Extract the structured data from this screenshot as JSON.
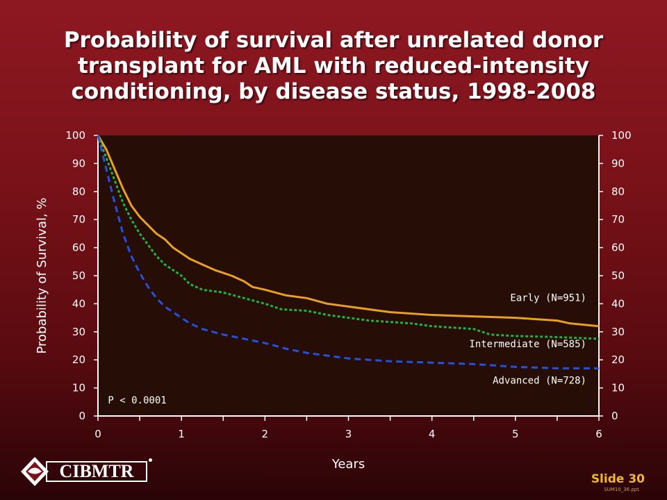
{
  "title_lines": [
    "Probability of survival after unrelated donor",
    "transplant for AML with reduced-intensity",
    "conditioning, by disease status, 1998-2008"
  ],
  "logo_text": "CIBMTR",
  "slide_label": "Slide 30",
  "file_ref": "SUM10_36.ppt",
  "colors": {
    "plot_bg": "#260e06",
    "axis": "#ffffff",
    "early": "#e8a21e",
    "intermediate": "#22b33a",
    "advanced": "#2352e0",
    "slide_num": "#f0b732"
  },
  "chart_data": {
    "type": "line",
    "title": "Probability of survival after unrelated donor transplant for AML with reduced-intensity conditioning, by disease status, 1998-2008",
    "xlabel": "Years",
    "ylabel": "Probability of Survival, %",
    "xlim": [
      0,
      6
    ],
    "ylim": [
      0,
      100
    ],
    "x_ticks": [
      0,
      1,
      2,
      3,
      4,
      5,
      6
    ],
    "y_ticks": [
      0,
      10,
      20,
      30,
      40,
      50,
      60,
      70,
      80,
      90,
      100
    ],
    "right_axis_ticks": [
      0,
      10,
      20,
      30,
      40,
      50,
      60,
      70,
      80,
      90,
      100
    ],
    "annotation": "P < 0.0001",
    "series": [
      {
        "name": "Early (N=951)",
        "color": "#e8a21e",
        "style": "solid",
        "x": [
          0,
          0.1,
          0.2,
          0.3,
          0.4,
          0.5,
          0.6,
          0.7,
          0.8,
          0.9,
          1.0,
          1.1,
          1.25,
          1.4,
          1.5,
          1.6,
          1.75,
          1.85,
          2.0,
          2.25,
          2.5,
          2.75,
          3.0,
          3.25,
          3.5,
          4.0,
          4.5,
          5.0,
          5.5,
          5.65,
          6.0
        ],
        "y": [
          100,
          95,
          88,
          81,
          75,
          71,
          68,
          65,
          63,
          60,
          58,
          56,
          54,
          52,
          51,
          50,
          48,
          46,
          45,
          43,
          42,
          40,
          39,
          38,
          37,
          36,
          35.5,
          35,
          34,
          33,
          32
        ]
      },
      {
        "name": "Intermediate (N=585)",
        "color": "#22b33a",
        "style": "dotted",
        "x": [
          0,
          0.1,
          0.2,
          0.3,
          0.4,
          0.5,
          0.6,
          0.7,
          0.8,
          0.9,
          1.0,
          1.1,
          1.25,
          1.5,
          1.75,
          2.0,
          2.2,
          2.5,
          2.75,
          3.0,
          3.25,
          3.5,
          3.75,
          4.0,
          4.25,
          4.5,
          4.6,
          4.7,
          5.0,
          5.4,
          5.6,
          6.0
        ],
        "y": [
          100,
          92,
          84,
          76,
          70,
          65,
          61,
          57,
          54,
          52,
          50,
          47,
          45,
          44,
          42,
          40,
          38,
          37.5,
          36,
          35,
          34,
          33.5,
          33,
          32,
          31.5,
          31,
          30,
          29,
          28.5,
          28.2,
          28,
          27.5
        ]
      },
      {
        "name": "Advanced (N=728)",
        "color": "#2352e0",
        "style": "dashed",
        "x": [
          0,
          0.1,
          0.2,
          0.3,
          0.4,
          0.5,
          0.6,
          0.7,
          0.8,
          0.9,
          1.0,
          1.1,
          1.25,
          1.5,
          1.75,
          2.0,
          2.25,
          2.5,
          2.75,
          3.0,
          3.5,
          4.0,
          4.5,
          5.0,
          5.5,
          6.0
        ],
        "y": [
          100,
          88,
          76,
          65,
          57,
          51,
          46,
          42,
          39,
          37,
          35,
          33,
          31,
          29,
          27.5,
          26,
          24,
          22.5,
          21.5,
          20.5,
          19.5,
          19,
          18.5,
          17.5,
          17,
          17
        ]
      }
    ]
  }
}
